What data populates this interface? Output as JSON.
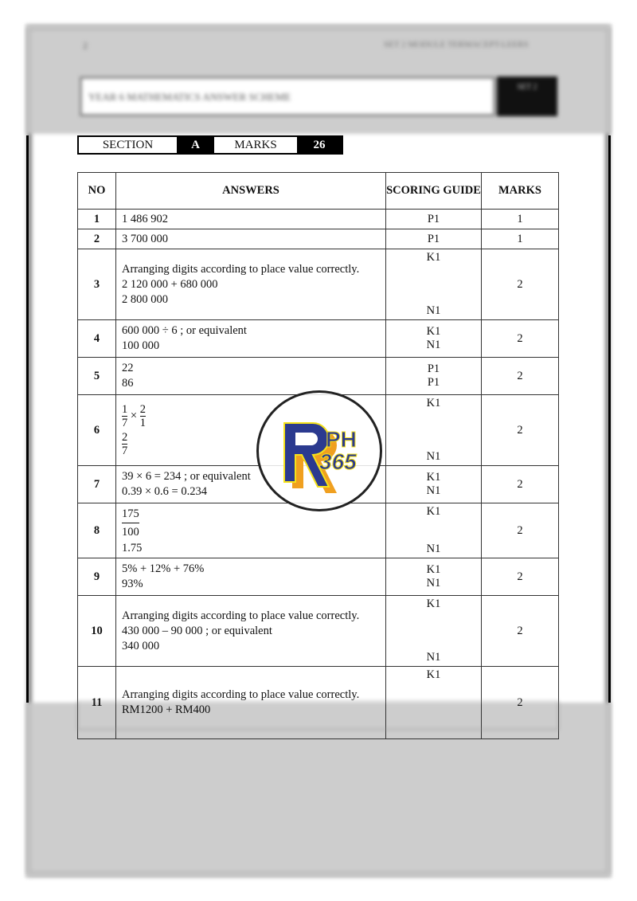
{
  "header": {
    "page_number": "2",
    "running_title": "SET 2 MODULE TERMACEPT-LEERS",
    "doc_title": "YEAR 6 MATHEMATICS ANSWER SCHEME",
    "code": "SET 2"
  },
  "section_bar": {
    "section_label": "SECTION",
    "section_value": "A",
    "marks_label": "MARKS",
    "marks_value": "26"
  },
  "table": {
    "headers": {
      "no": "NO",
      "answers": "ANSWERS",
      "scoring": "SCORING GUIDE",
      "marks": "MARKS"
    },
    "rows": [
      {
        "no": "1",
        "answers": [
          "1 486 902"
        ],
        "scoring": [
          "P1"
        ],
        "marks": "1"
      },
      {
        "no": "2",
        "answers": [
          "3 700 000"
        ],
        "scoring": [
          "P1"
        ],
        "marks": "1"
      },
      {
        "no": "3",
        "answers": [
          "Arranging digits according to place value correctly.",
          "2 120 000 + 680 000",
          "2 800 000"
        ],
        "scoring": [
          "K1",
          "N1"
        ],
        "marks": "2"
      },
      {
        "no": "4",
        "answers": [
          "600 000 ÷ 6   ; or equivalent",
          "100 000"
        ],
        "scoring": [
          "K1",
          "N1"
        ],
        "marks": "2"
      },
      {
        "no": "5",
        "answers": [
          "22",
          "86"
        ],
        "scoring": [
          "P1",
          "P1"
        ],
        "marks": "2"
      },
      {
        "no": "6",
        "answers": [
          "1",
          "7",
          "×",
          "2",
          "1",
          "2",
          "7"
        ],
        "scoring": [
          "K1",
          "N1"
        ],
        "marks": "2"
      },
      {
        "no": "7",
        "answers": [
          "39 × 6 = 234    ; or equivalent",
          "0.39 × 0.6 = 0.234"
        ],
        "scoring": [
          "K1",
          "N1"
        ],
        "marks": "2"
      },
      {
        "no": "8",
        "answers": [
          "175",
          "100",
          "1.75"
        ],
        "scoring": [
          "K1",
          "N1"
        ],
        "marks": "2"
      },
      {
        "no": "9",
        "answers": [
          "5% + 12% + 76%",
          "93%"
        ],
        "scoring": [
          "K1",
          "N1"
        ],
        "marks": "2"
      },
      {
        "no": "10",
        "answers": [
          "Arranging digits according to place value correctly.",
          "430 000 – 90 000   ; or equivalent",
          "340 000"
        ],
        "scoring": [
          "K1",
          "N1"
        ],
        "marks": "2"
      },
      {
        "no": "11",
        "answers": [
          "Arranging digits according to place value correctly.",
          "RM1200 + RM400"
        ],
        "scoring": [
          "K1"
        ],
        "marks": "2"
      }
    ]
  },
  "watermark": {
    "text": "RPH 365",
    "colors": {
      "blue": "#2b3a8f",
      "orange": "#f0a020",
      "yellow": "#f5e21a"
    }
  }
}
